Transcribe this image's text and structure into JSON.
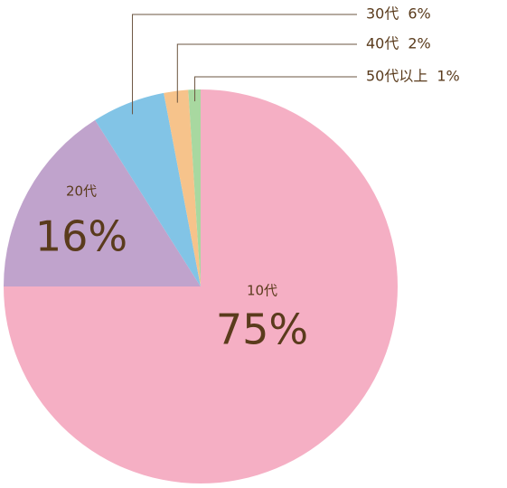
{
  "chart_data": {
    "type": "pie",
    "categories": [
      "10代",
      "20代",
      "30代",
      "40代",
      "50代以上"
    ],
    "values": [
      75,
      16,
      6,
      2,
      1
    ],
    "value_labels": [
      "75%",
      "16%",
      "6%",
      "2%",
      "1%"
    ],
    "colors": [
      "#f5afc4",
      "#c0a3cc",
      "#82c4e6",
      "#f6c38b",
      "#a8d8a0"
    ]
  }
}
